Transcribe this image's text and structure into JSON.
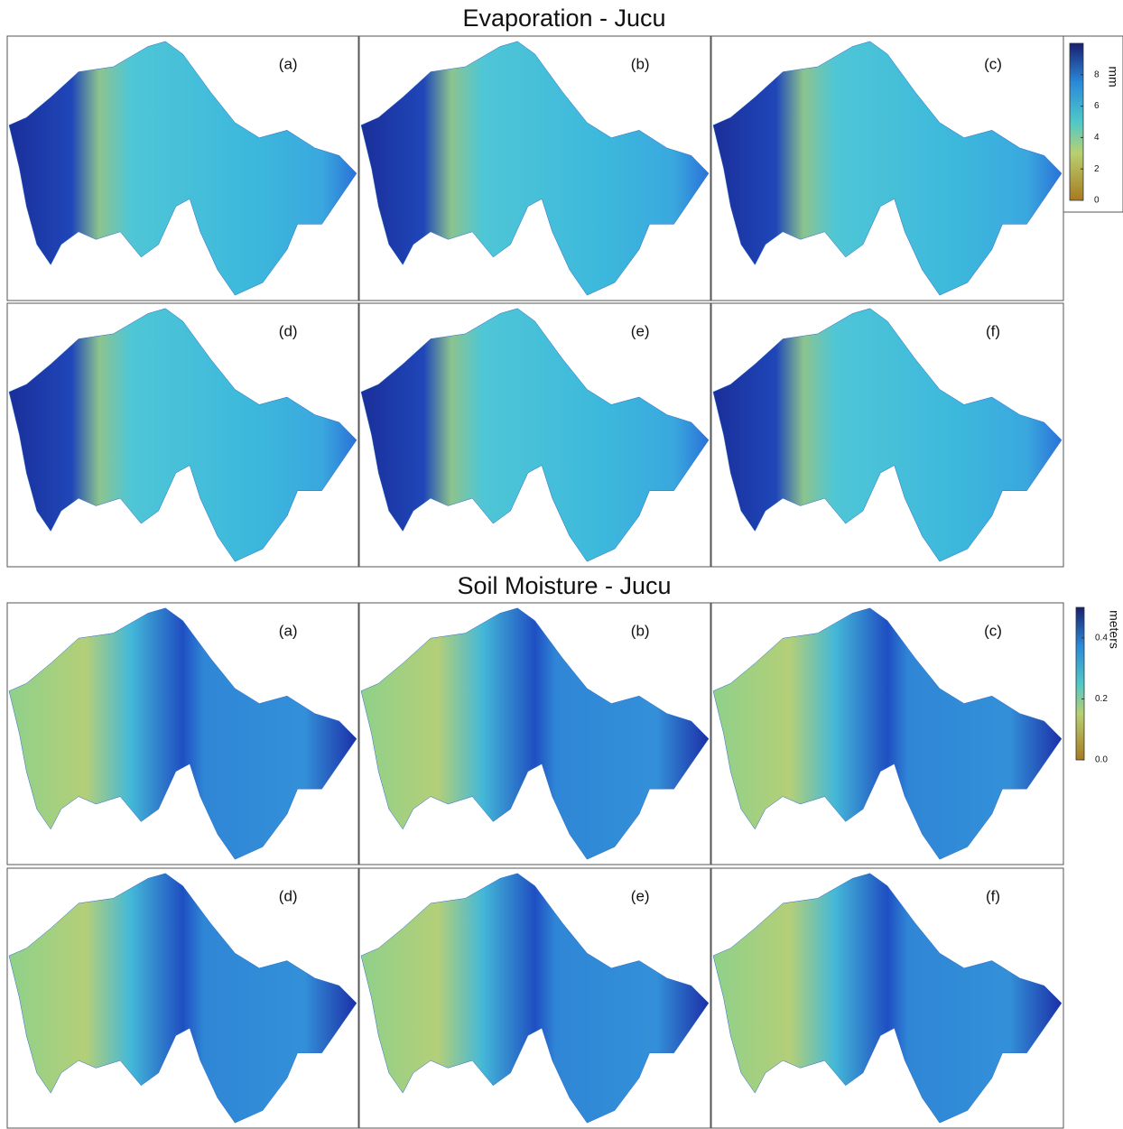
{
  "figures": [
    {
      "title": "Evaporation - Jucu",
      "panels": [
        "(a)",
        "(b)",
        "(c)",
        "(d)",
        "(e)",
        "(f)"
      ],
      "colorbar": {
        "label": "mm",
        "range": [
          0,
          10
        ],
        "ticks": [
          0,
          2,
          4,
          6,
          8
        ]
      }
    },
    {
      "title": "Soil Moisture - Jucu",
      "panels": [
        "(a)",
        "(b)",
        "(c)",
        "(d)",
        "(e)",
        "(f)"
      ],
      "colorbar": {
        "label": "meters",
        "range": [
          0,
          0.5
        ],
        "ticks": [
          {
            "value": 0,
            "label": "0.0"
          },
          {
            "value": 0.2,
            "label": "0.2"
          },
          {
            "value": 0.4,
            "label": "0.4"
          }
        ]
      }
    }
  ]
}
